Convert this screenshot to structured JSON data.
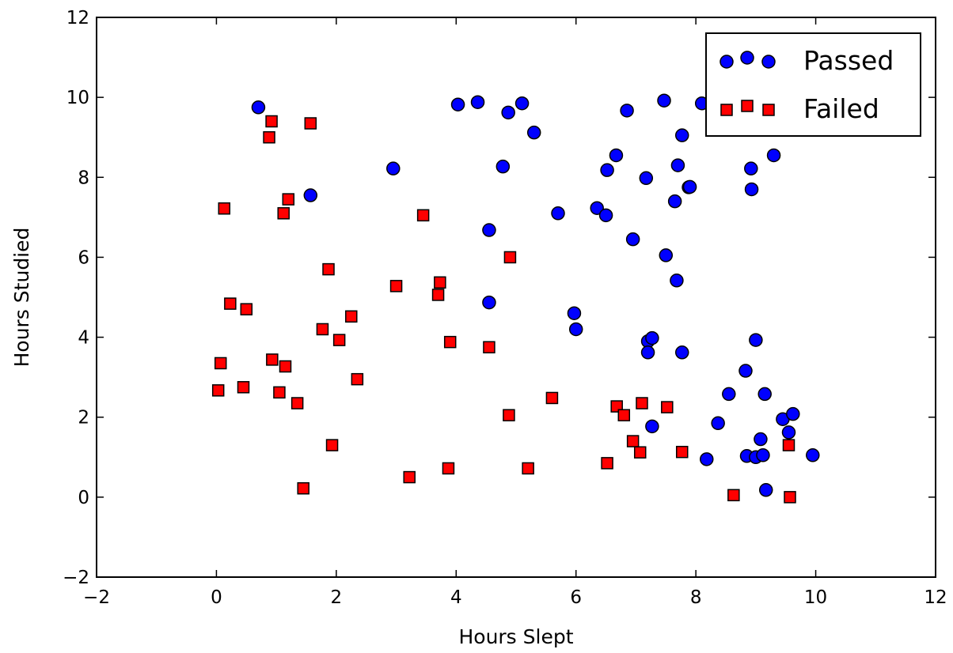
{
  "chart_data": {
    "type": "scatter",
    "title": "",
    "xlabel": "Hours Slept",
    "ylabel": "Hours Studied",
    "xlim": [
      -2,
      12
    ],
    "ylim": [
      -2,
      12
    ],
    "xticks": [
      -2,
      0,
      2,
      4,
      6,
      8,
      10,
      12
    ],
    "yticks": [
      -2,
      0,
      2,
      4,
      6,
      8,
      10,
      12
    ],
    "grid": false,
    "legend_position": "top-right",
    "series": [
      {
        "name": "Passed",
        "marker": "circle",
        "color": "#0000ff",
        "points": [
          [
            0.7,
            9.75
          ],
          [
            1.57,
            7.55
          ],
          [
            2.95,
            8.22
          ],
          [
            4.03,
            9.82
          ],
          [
            4.36,
            9.88
          ],
          [
            4.87,
            9.62
          ],
          [
            5.1,
            9.85
          ],
          [
            5.3,
            9.12
          ],
          [
            4.78,
            8.27
          ],
          [
            4.55,
            6.68
          ],
          [
            4.55,
            4.87
          ],
          [
            5.7,
            7.1
          ],
          [
            5.97,
            4.6
          ],
          [
            6.0,
            4.2
          ],
          [
            6.35,
            7.23
          ],
          [
            6.5,
            7.05
          ],
          [
            6.52,
            8.18
          ],
          [
            6.67,
            8.55
          ],
          [
            6.85,
            9.67
          ],
          [
            6.95,
            6.45
          ],
          [
            7.17,
            7.98
          ],
          [
            7.2,
            3.9
          ],
          [
            7.2,
            3.62
          ],
          [
            7.27,
            3.98
          ],
          [
            7.27,
            1.77
          ],
          [
            7.47,
            9.92
          ],
          [
            7.5,
            6.05
          ],
          [
            7.65,
            7.4
          ],
          [
            7.68,
            5.42
          ],
          [
            7.7,
            8.3
          ],
          [
            7.77,
            9.05
          ],
          [
            7.77,
            3.62
          ],
          [
            7.88,
            7.75
          ],
          [
            7.9,
            7.76
          ],
          [
            8.1,
            9.85
          ],
          [
            8.18,
            0.95
          ],
          [
            8.37,
            1.85
          ],
          [
            8.55,
            2.58
          ],
          [
            8.83,
            3.16
          ],
          [
            8.85,
            1.03
          ],
          [
            8.92,
            8.22
          ],
          [
            8.93,
            7.7
          ],
          [
            9.0,
            3.93
          ],
          [
            9.0,
            1.0
          ],
          [
            9.08,
            1.45
          ],
          [
            9.12,
            1.05
          ],
          [
            9.15,
            2.58
          ],
          [
            9.17,
            0.18
          ],
          [
            9.3,
            8.55
          ],
          [
            9.45,
            1.95
          ],
          [
            9.55,
            1.62
          ],
          [
            9.62,
            2.08
          ],
          [
            9.95,
            1.05
          ]
        ]
      },
      {
        "name": "Failed",
        "marker": "square",
        "color": "#ff0000",
        "points": [
          [
            0.03,
            2.67
          ],
          [
            0.07,
            3.35
          ],
          [
            0.13,
            7.22
          ],
          [
            0.23,
            4.84
          ],
          [
            0.45,
            2.75
          ],
          [
            0.5,
            4.7
          ],
          [
            0.88,
            9.0
          ],
          [
            0.92,
            9.4
          ],
          [
            0.93,
            3.44
          ],
          [
            1.05,
            2.62
          ],
          [
            1.12,
            7.1
          ],
          [
            1.15,
            3.27
          ],
          [
            1.2,
            7.45
          ],
          [
            1.35,
            2.35
          ],
          [
            1.45,
            0.22
          ],
          [
            1.57,
            9.35
          ],
          [
            1.77,
            4.2
          ],
          [
            1.87,
            5.7
          ],
          [
            1.93,
            1.3
          ],
          [
            2.05,
            3.93
          ],
          [
            2.25,
            4.52
          ],
          [
            2.35,
            2.95
          ],
          [
            3.0,
            5.28
          ],
          [
            3.22,
            0.5
          ],
          [
            3.45,
            7.05
          ],
          [
            3.7,
            5.06
          ],
          [
            3.73,
            5.37
          ],
          [
            3.87,
            0.72
          ],
          [
            3.9,
            3.88
          ],
          [
            4.55,
            3.75
          ],
          [
            4.88,
            2.05
          ],
          [
            4.9,
            6.0
          ],
          [
            5.2,
            0.72
          ],
          [
            5.6,
            2.48
          ],
          [
            6.52,
            0.85
          ],
          [
            6.68,
            2.27
          ],
          [
            6.8,
            2.05
          ],
          [
            6.95,
            1.4
          ],
          [
            7.07,
            1.12
          ],
          [
            7.1,
            2.35
          ],
          [
            7.52,
            2.25
          ],
          [
            7.77,
            1.13
          ],
          [
            8.63,
            0.05
          ],
          [
            9.55,
            1.3
          ],
          [
            9.57,
            0.0
          ]
        ]
      }
    ]
  }
}
